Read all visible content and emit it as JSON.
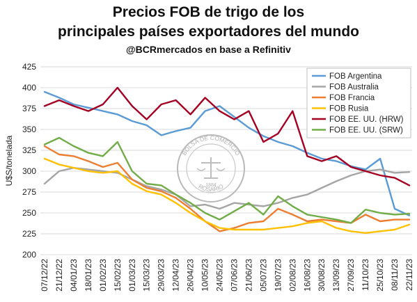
{
  "chart_data": {
    "type": "line",
    "title": [
      "Precios FOB de trigo de los",
      "principales países exportadores del mundo"
    ],
    "subtitle": "@BCRmercados en base a Refinitiv",
    "ylabel": "U$S/tonelada",
    "xlabel": "",
    "ylim": [
      200,
      425
    ],
    "yticks": [
      200,
      225,
      250,
      275,
      300,
      325,
      350,
      375,
      400,
      425
    ],
    "grid": "horizontal",
    "legend": "top-right",
    "x": [
      "07/12/22",
      "21/12/22",
      "04/01/23",
      "18/01/23",
      "01/02/23",
      "15/02/23",
      "01/03/23",
      "15/03/23",
      "29/03/23",
      "12/04/23",
      "26/04/23",
      "10/05/23",
      "24/05/23",
      "07/06/23",
      "21/06/23",
      "05/07/23",
      "19/07/23",
      "02/08/23",
      "16/08/23",
      "30/08/23",
      "13/09/23",
      "27/09/23",
      "11/10/23",
      "25/10/23",
      "08/11/23",
      "22/11/23"
    ],
    "series": [
      {
        "name": "FOB Argentina",
        "color": "#5b9bd5",
        "values": [
          395,
          388,
          380,
          376,
          372,
          368,
          360,
          355,
          343,
          348,
          352,
          372,
          378,
          365,
          352,
          342,
          335,
          330,
          322,
          315,
          312,
          306,
          302,
          315,
          255,
          247
        ]
      },
      {
        "name": "FOB Australia",
        "color": "#a5a5a5",
        "values": [
          285,
          300,
          304,
          302,
          300,
          298,
          290,
          282,
          278,
          272,
          258,
          260,
          255,
          262,
          260,
          258,
          262,
          268,
          272,
          280,
          288,
          295,
          300,
          302,
          298,
          299
        ]
      },
      {
        "name": "FOB Francia",
        "color": "#ed7d31",
        "values": [
          330,
          320,
          318,
          312,
          305,
          310,
          290,
          280,
          276,
          268,
          255,
          240,
          228,
          232,
          238,
          240,
          255,
          248,
          240,
          242,
          240,
          238,
          248,
          240,
          242,
          242
        ]
      },
      {
        "name": "FOB Rusia",
        "color": "#ffc000",
        "values": [
          315,
          308,
          304,
          300,
          298,
          300,
          285,
          276,
          272,
          262,
          250,
          240,
          232,
          230,
          230,
          230,
          232,
          234,
          238,
          240,
          232,
          228,
          226,
          228,
          230,
          236
        ]
      },
      {
        "name": "FOB EE. UU. (HRW)",
        "color": "#a50021",
        "values": [
          378,
          385,
          378,
          372,
          380,
          400,
          378,
          362,
          380,
          385,
          368,
          388,
          372,
          362,
          372,
          335,
          345,
          372,
          318,
          312,
          318,
          305,
          300,
          295,
          292,
          283
        ]
      },
      {
        "name": "FOB EE. UU. (SRW)",
        "color": "#70ad47",
        "values": [
          332,
          340,
          330,
          322,
          318,
          335,
          300,
          285,
          283,
          272,
          262,
          250,
          242,
          252,
          262,
          248,
          270,
          258,
          248,
          245,
          242,
          238,
          254,
          250,
          248,
          249
        ]
      }
    ]
  },
  "watermark": {
    "top_text": "BOLSA DE COMERCIO",
    "bottom_text": "ROSARIO",
    "year": "1884"
  }
}
